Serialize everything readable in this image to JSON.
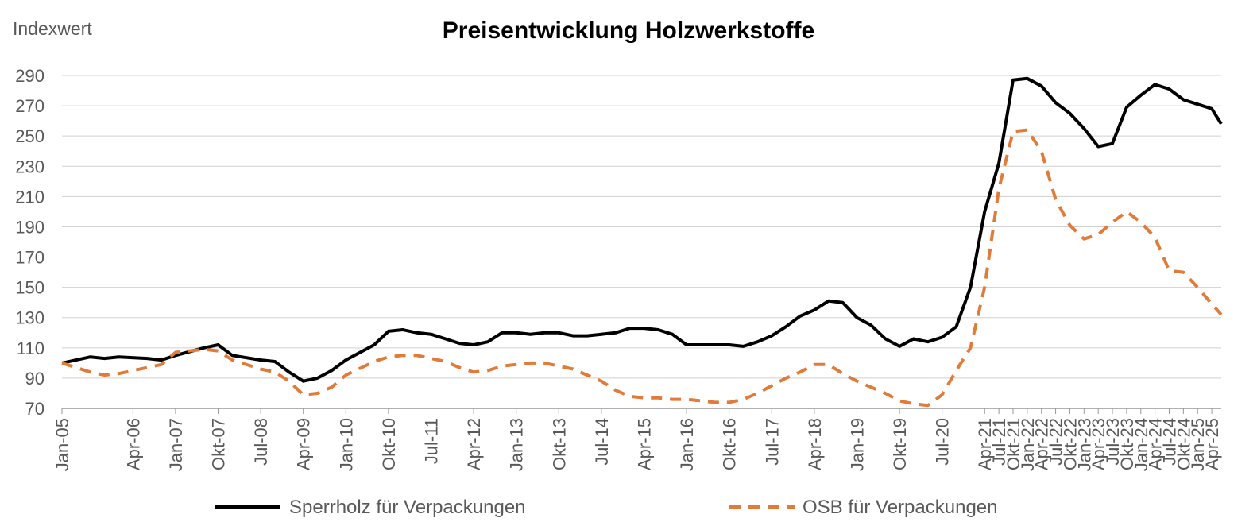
{
  "chart_data": {
    "type": "line",
    "title": "Preisentwicklung Holzwerkstoffe",
    "ylabel": "Indexwert",
    "xlabel": "",
    "ylim": [
      70,
      290
    ],
    "yticks": [
      70,
      90,
      110,
      130,
      150,
      170,
      190,
      210,
      230,
      250,
      270,
      290
    ],
    "grid": "horizontal",
    "legend": "bottom",
    "x_start": "Jan-05",
    "x_end": "Jun-25",
    "x_ticks": [
      "Jan-05",
      "Apr-06",
      "Jan-07",
      "Okt-07",
      "Jul-08",
      "Apr-09",
      "Jan-10",
      "Okt-10",
      "Jul-11",
      "Apr-12",
      "Jan-13",
      "Okt-13",
      "Jul-14",
      "Apr-15",
      "Jan-16",
      "Okt-16",
      "Jul-17",
      "Apr-18",
      "Jan-19",
      "Okt-19",
      "Jul-20",
      "Apr-21",
      "Jul-21",
      "Okt-21",
      "Jan-22",
      "Apr-22",
      "Jul-22",
      "Okt-22",
      "Jan-23",
      "Apr-23",
      "Jul-23",
      "Okt-23",
      "Jan-24",
      "Apr-24",
      "Jul-24",
      "Okt-24",
      "Jan-25",
      "Apr-25"
    ],
    "series": [
      {
        "name": "Sperrholz für Verpackungen",
        "color": "#000000",
        "style": "solid",
        "points": [
          [
            "Jan-05",
            100
          ],
          [
            "Jul-05",
            104
          ],
          [
            "Okt-05",
            103
          ],
          [
            "Jan-06",
            104
          ],
          [
            "Jul-06",
            103
          ],
          [
            "Okt-06",
            102
          ],
          [
            "Jan-07",
            105
          ],
          [
            "Jul-07",
            110
          ],
          [
            "Okt-07",
            112
          ],
          [
            "Jan-08",
            105
          ],
          [
            "Jul-08",
            102
          ],
          [
            "Okt-08",
            101
          ],
          [
            "Jan-09",
            94
          ],
          [
            "Apr-09",
            88
          ],
          [
            "Jul-09",
            90
          ],
          [
            "Okt-09",
            95
          ],
          [
            "Jan-10",
            102
          ],
          [
            "Jul-10",
            112
          ],
          [
            "Okt-10",
            121
          ],
          [
            "Jan-11",
            122
          ],
          [
            "Apr-11",
            120
          ],
          [
            "Jul-11",
            119
          ],
          [
            "Okt-11",
            116
          ],
          [
            "Jan-12",
            113
          ],
          [
            "Apr-12",
            112
          ],
          [
            "Jul-12",
            114
          ],
          [
            "Okt-12",
            120
          ],
          [
            "Jan-13",
            120
          ],
          [
            "Apr-13",
            119
          ],
          [
            "Jul-13",
            120
          ],
          [
            "Okt-13",
            120
          ],
          [
            "Jan-14",
            118
          ],
          [
            "Apr-14",
            118
          ],
          [
            "Jul-14",
            119
          ],
          [
            "Okt-14",
            120
          ],
          [
            "Jan-15",
            123
          ],
          [
            "Apr-15",
            123
          ],
          [
            "Jul-15",
            122
          ],
          [
            "Okt-15",
            119
          ],
          [
            "Jan-16",
            112
          ],
          [
            "Apr-16",
            112
          ],
          [
            "Jul-16",
            112
          ],
          [
            "Okt-16",
            112
          ],
          [
            "Jan-17",
            111
          ],
          [
            "Apr-17",
            114
          ],
          [
            "Jul-17",
            118
          ],
          [
            "Okt-17",
            124
          ],
          [
            "Jan-18",
            131
          ],
          [
            "Apr-18",
            135
          ],
          [
            "Jul-18",
            141
          ],
          [
            "Okt-18",
            140
          ],
          [
            "Jan-19",
            130
          ],
          [
            "Apr-19",
            125
          ],
          [
            "Jul-19",
            116
          ],
          [
            "Okt-19",
            111
          ],
          [
            "Jan-20",
            116
          ],
          [
            "Apr-20",
            114
          ],
          [
            "Jul-20",
            117
          ],
          [
            "Okt-20",
            124
          ],
          [
            "Jan-21",
            150
          ],
          [
            "Apr-21",
            200
          ],
          [
            "Jul-21",
            232
          ],
          [
            "Okt-21",
            287
          ],
          [
            "Jan-22",
            288
          ],
          [
            "Apr-22",
            283
          ],
          [
            "Jul-22",
            272
          ],
          [
            "Okt-22",
            265
          ],
          [
            "Jan-23",
            255
          ],
          [
            "Apr-23",
            243
          ],
          [
            "Jul-23",
            245
          ],
          [
            "Okt-23",
            269
          ],
          [
            "Jan-24",
            277
          ],
          [
            "Apr-24",
            284
          ],
          [
            "Jul-24",
            281
          ],
          [
            "Okt-24",
            274
          ],
          [
            "Jan-25",
            271
          ],
          [
            "Apr-25",
            268
          ],
          [
            "Jun-25",
            258
          ]
        ]
      },
      {
        "name": "OSB für Verpackungen",
        "color": "#E07B39",
        "style": "dashed",
        "points": [
          [
            "Jan-05",
            100
          ],
          [
            "Jul-05",
            94
          ],
          [
            "Okt-05",
            92
          ],
          [
            "Jan-06",
            93
          ],
          [
            "Jul-06",
            97
          ],
          [
            "Okt-06",
            99
          ],
          [
            "Jan-07",
            107
          ],
          [
            "Jul-07",
            109
          ],
          [
            "Okt-07",
            108
          ],
          [
            "Jan-08",
            102
          ],
          [
            "Jul-08",
            96
          ],
          [
            "Okt-08",
            94
          ],
          [
            "Jan-09",
            88
          ],
          [
            "Apr-09",
            79
          ],
          [
            "Jul-09",
            80
          ],
          [
            "Okt-09",
            84
          ],
          [
            "Jan-10",
            92
          ],
          [
            "Jul-10",
            101
          ],
          [
            "Okt-10",
            104
          ],
          [
            "Jan-11",
            105
          ],
          [
            "Apr-11",
            105
          ],
          [
            "Jul-11",
            103
          ],
          [
            "Okt-11",
            101
          ],
          [
            "Jan-12",
            97
          ],
          [
            "Apr-12",
            94
          ],
          [
            "Jul-12",
            95
          ],
          [
            "Okt-12",
            98
          ],
          [
            "Jan-13",
            99
          ],
          [
            "Apr-13",
            100
          ],
          [
            "Jul-13",
            100
          ],
          [
            "Okt-13",
            98
          ],
          [
            "Jan-14",
            96
          ],
          [
            "Apr-14",
            92
          ],
          [
            "Jul-14",
            88
          ],
          [
            "Okt-14",
            82
          ],
          [
            "Jan-15",
            78
          ],
          [
            "Apr-15",
            77
          ],
          [
            "Jul-15",
            77
          ],
          [
            "Okt-15",
            76
          ],
          [
            "Jan-16",
            76
          ],
          [
            "Apr-16",
            75
          ],
          [
            "Jul-16",
            74
          ],
          [
            "Okt-16",
            74
          ],
          [
            "Jan-17",
            76
          ],
          [
            "Apr-17",
            80
          ],
          [
            "Jul-17",
            85
          ],
          [
            "Okt-17",
            90
          ],
          [
            "Jan-18",
            94
          ],
          [
            "Apr-18",
            99
          ],
          [
            "Jul-18",
            99
          ],
          [
            "Okt-18",
            93
          ],
          [
            "Jan-19",
            88
          ],
          [
            "Apr-19",
            84
          ],
          [
            "Jul-19",
            80
          ],
          [
            "Okt-19",
            75
          ],
          [
            "Jan-20",
            73
          ],
          [
            "Apr-20",
            72
          ],
          [
            "Jul-20",
            79
          ],
          [
            "Okt-20",
            95
          ],
          [
            "Jan-21",
            110
          ],
          [
            "Apr-21",
            150
          ],
          [
            "Jul-21",
            215
          ],
          [
            "Okt-21",
            253
          ],
          [
            "Jan-22",
            254
          ],
          [
            "Apr-22",
            240
          ],
          [
            "Jul-22",
            208
          ],
          [
            "Okt-22",
            191
          ],
          [
            "Jan-23",
            182
          ],
          [
            "Apr-23",
            185
          ],
          [
            "Jul-23",
            193
          ],
          [
            "Okt-23",
            200
          ],
          [
            "Jan-24",
            193
          ],
          [
            "Apr-24",
            183
          ],
          [
            "Jul-24",
            161
          ],
          [
            "Okt-24",
            160
          ],
          [
            "Jan-25",
            150
          ],
          [
            "Apr-25",
            139
          ],
          [
            "Jun-25",
            132
          ]
        ]
      }
    ]
  }
}
